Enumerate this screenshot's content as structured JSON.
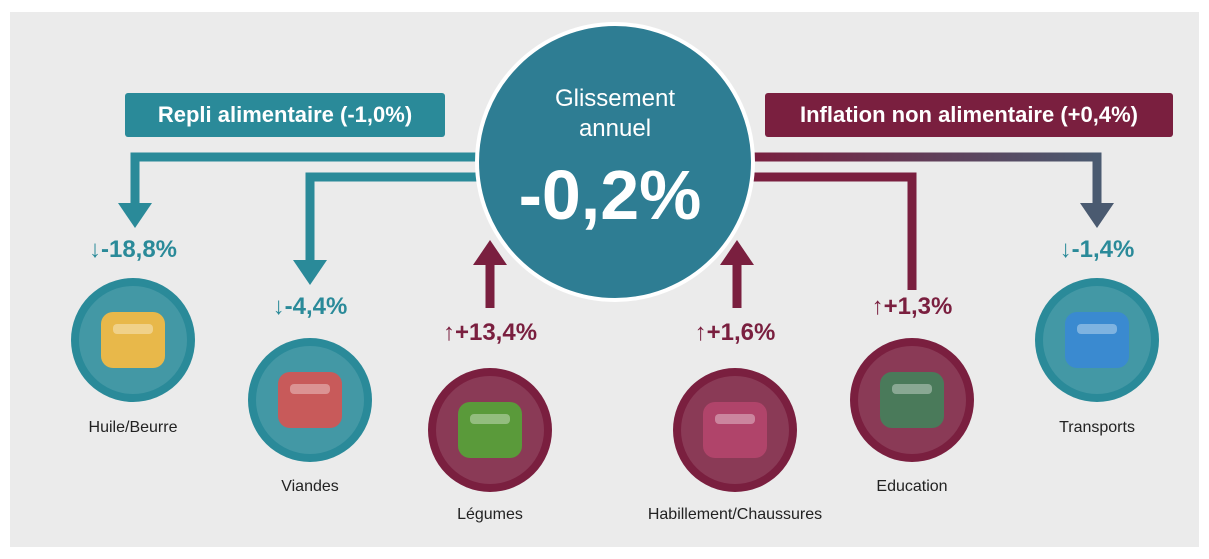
{
  "center": {
    "title": "Glissement annuel",
    "value": "-0,2%"
  },
  "banners": {
    "food": "Repli alimentaire (-1,0%)",
    "nonfood": "Inflation non alimentaire (+0,4%)"
  },
  "items": [
    {
      "change": "↓-18,8%",
      "label": "Huile/Beurre"
    },
    {
      "change": "↓-4,4%",
      "label": "Viandes"
    },
    {
      "change": "↑+13,4%",
      "label": "Légumes"
    },
    {
      "change": "↑+1,6%",
      "label": "Habillement/Chaussures"
    },
    {
      "change": "↑+1,3%",
      "label": "Education"
    },
    {
      "change": "↓-1,4%",
      "label": "Transports"
    }
  ]
}
